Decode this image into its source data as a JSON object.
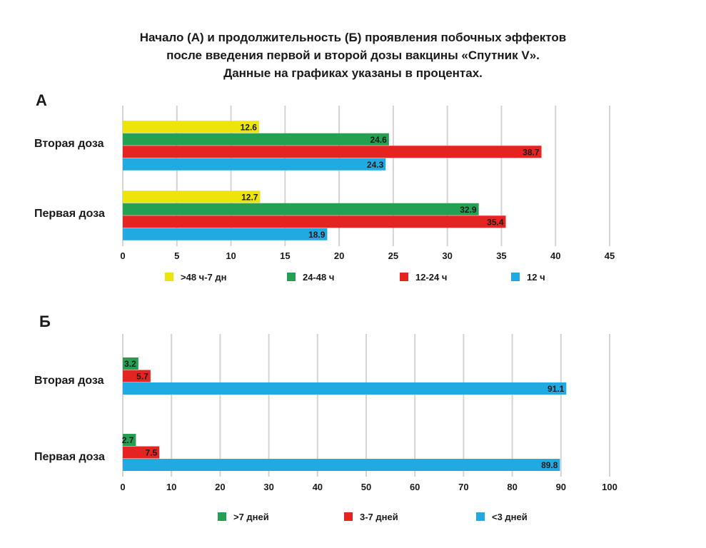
{
  "title_lines": [
    "Начало (А) и продолжительность (Б) проявления побочных эффектов",
    "после введения первой и второй дозы вакцины «Спутник V».",
    "Данные на графиках указаны в процентах."
  ],
  "chart_data": [
    {
      "type": "bar",
      "orientation": "horizontal",
      "panel_label": "А",
      "categories": [
        "Вторая доза",
        "Первая доза"
      ],
      "series": [
        {
          "name": ">48 ч-7 дн",
          "color": "#ede40a",
          "values": [
            12.6,
            12.7
          ]
        },
        {
          "name": "24-48 ч",
          "color": "#23a051",
          "values": [
            24.6,
            32.9
          ]
        },
        {
          "name": "12-24 ч",
          "color": "#e52421",
          "values": [
            38.7,
            35.4
          ]
        },
        {
          "name": "12 ч",
          "color": "#21a9e1",
          "values": [
            24.3,
            18.9
          ]
        }
      ],
      "xlim": [
        0,
        45
      ],
      "xticks": [
        0,
        5,
        10,
        15,
        20,
        25,
        30,
        35,
        40,
        45
      ],
      "grid": true,
      "legend_position": "bottom"
    },
    {
      "type": "bar",
      "orientation": "horizontal",
      "panel_label": "Б",
      "categories": [
        "Вторая доза",
        "Первая доза"
      ],
      "series": [
        {
          "name": ">7 дней",
          "color": "#23a051",
          "values": [
            3.2,
            2.7
          ]
        },
        {
          "name": "3-7 дней",
          "color": "#e52421",
          "values": [
            5.7,
            7.5
          ]
        },
        {
          "name": "<3 дней",
          "color": "#21a9e1",
          "values": [
            91.1,
            89.8
          ]
        }
      ],
      "xlim": [
        0,
        100
      ],
      "xticks": [
        0,
        10,
        20,
        30,
        40,
        50,
        60,
        70,
        80,
        90,
        100
      ],
      "grid": true,
      "legend_position": "bottom"
    }
  ]
}
